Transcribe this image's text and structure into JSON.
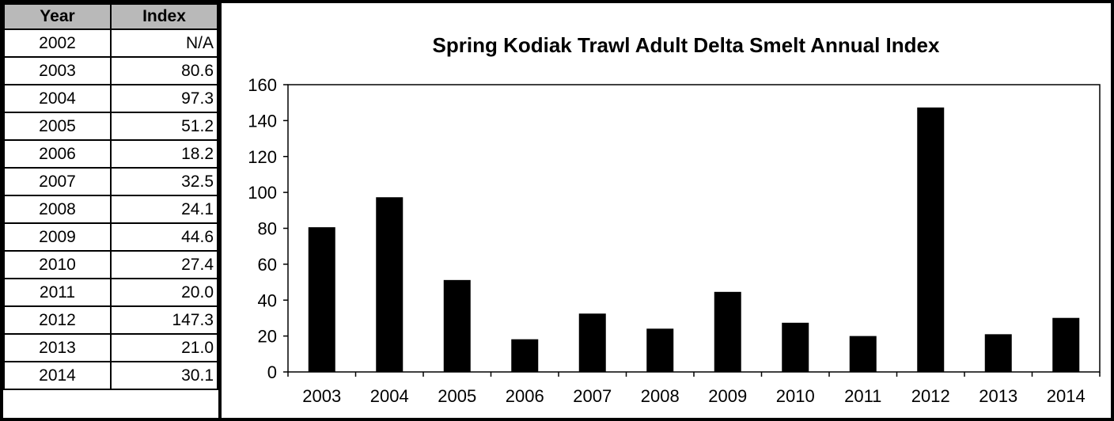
{
  "table": {
    "headers": [
      "Year",
      "Index"
    ],
    "rows": [
      {
        "year": "2002",
        "index": "N/A"
      },
      {
        "year": "2003",
        "index": "80.6"
      },
      {
        "year": "2004",
        "index": "97.3"
      },
      {
        "year": "2005",
        "index": "51.2"
      },
      {
        "year": "2006",
        "index": "18.2"
      },
      {
        "year": "2007",
        "index": "32.5"
      },
      {
        "year": "2008",
        "index": "24.1"
      },
      {
        "year": "2009",
        "index": "44.6"
      },
      {
        "year": "2010",
        "index": "27.4"
      },
      {
        "year": "2011",
        "index": "20.0"
      },
      {
        "year": "2012",
        "index": "147.3"
      },
      {
        "year": "2013",
        "index": "21.0"
      },
      {
        "year": "2014",
        "index": "30.1"
      }
    ]
  },
  "chart_data": {
    "type": "bar",
    "title": "Spring Kodiak Trawl Adult Delta Smelt Annual Index",
    "xlabel": "",
    "ylabel": "",
    "categories": [
      "2003",
      "2004",
      "2005",
      "2006",
      "2007",
      "2008",
      "2009",
      "2010",
      "2011",
      "2012",
      "2013",
      "2014"
    ],
    "values": [
      80.6,
      97.3,
      51.2,
      18.2,
      32.5,
      24.1,
      44.6,
      27.4,
      20.0,
      147.3,
      21.0,
      30.1
    ],
    "ylim": [
      0,
      160
    ],
    "yticks": [
      0,
      20,
      40,
      60,
      80,
      100,
      120,
      140,
      160
    ],
    "grid": false,
    "legend": "none",
    "bar_color": "#000000"
  }
}
